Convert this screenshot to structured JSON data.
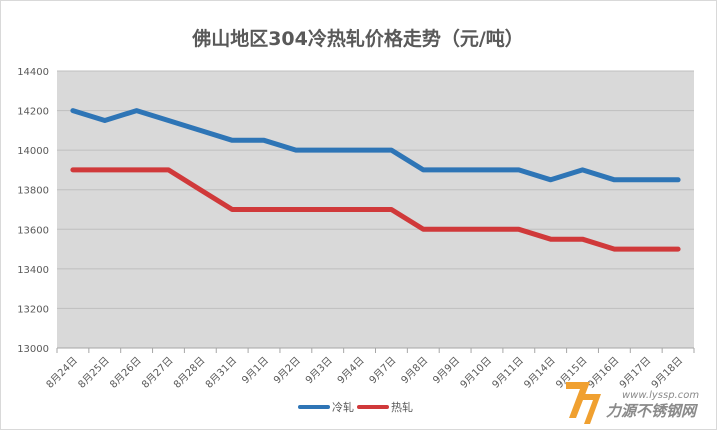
{
  "chart_data": {
    "type": "line",
    "title": "佛山地区304冷热轧价格走势（元/吨）",
    "categories": [
      "8月24日",
      "8月25日",
      "8月26日",
      "8月27日",
      "8月28日",
      "8月31日",
      "9月1日",
      "9月2日",
      "9月3日",
      "9月4日",
      "9月7日",
      "9月8日",
      "9月9日",
      "9月10日",
      "9月11日",
      "9月14日",
      "9月15日",
      "9月16日",
      "9月17日",
      "9月18日"
    ],
    "series": [
      {
        "name": "冷轧",
        "color": "#2e75b6",
        "values": [
          14200,
          14150,
          14200,
          14150,
          14100,
          14050,
          14050,
          14000,
          14000,
          14000,
          14000,
          13900,
          13900,
          13900,
          13900,
          13850,
          13900,
          13850,
          13850,
          13850
        ]
      },
      {
        "name": "热轧",
        "color": "#d0393a",
        "values": [
          13900,
          13900,
          13900,
          13900,
          13800,
          13700,
          13700,
          13700,
          13700,
          13700,
          13700,
          13600,
          13600,
          13600,
          13600,
          13550,
          13550,
          13500,
          13500,
          13500
        ]
      }
    ],
    "ylim": [
      13000,
      14400
    ],
    "yticks": [
      13000,
      13200,
      13400,
      13600,
      13800,
      14000,
      14200,
      14400
    ],
    "grid": true,
    "plot_background": "#d9d9d9",
    "legend_position": "bottom"
  },
  "watermark": {
    "brand_text": "力源不锈钢网",
    "url_text": "www.lyssp.com"
  }
}
